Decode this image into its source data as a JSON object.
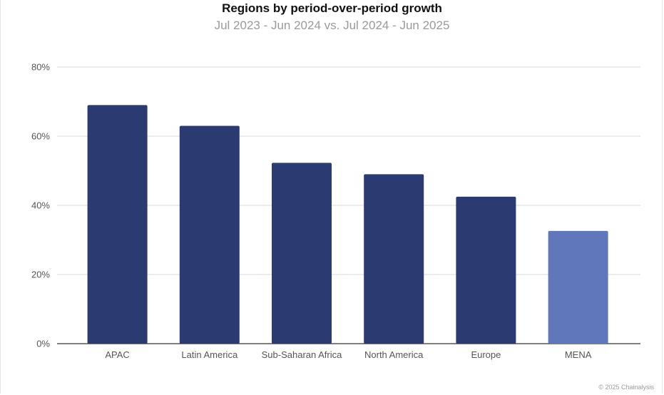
{
  "chart_data": {
    "type": "bar",
    "title": "Regions by period-over-period growth",
    "subtitle": "Jul 2023 - Jun 2024 vs. Jul 2024 - Jun 2025",
    "xlabel": "",
    "ylabel": "",
    "categories": [
      "APAC",
      "Latin America",
      "Sub-Saharan Africa",
      "North America",
      "Europe",
      "MENA"
    ],
    "values": [
      69,
      63,
      52.3,
      49,
      42.5,
      32.6
    ],
    "ylim": [
      0,
      80
    ],
    "yticks": [
      0,
      20,
      40,
      60,
      80
    ],
    "ytick_labels": [
      "0%",
      "20%",
      "40%",
      "60%",
      "80%"
    ],
    "grid": true,
    "colors": {
      "bar": "#2b3a70",
      "highlight": "#6077bb",
      "grid": "#d9d9d9",
      "axis": "#333333",
      "tick_text": "#555555"
    },
    "highlight_category": "MENA"
  },
  "footer": {
    "credit": "© 2025 Chainalysis"
  }
}
